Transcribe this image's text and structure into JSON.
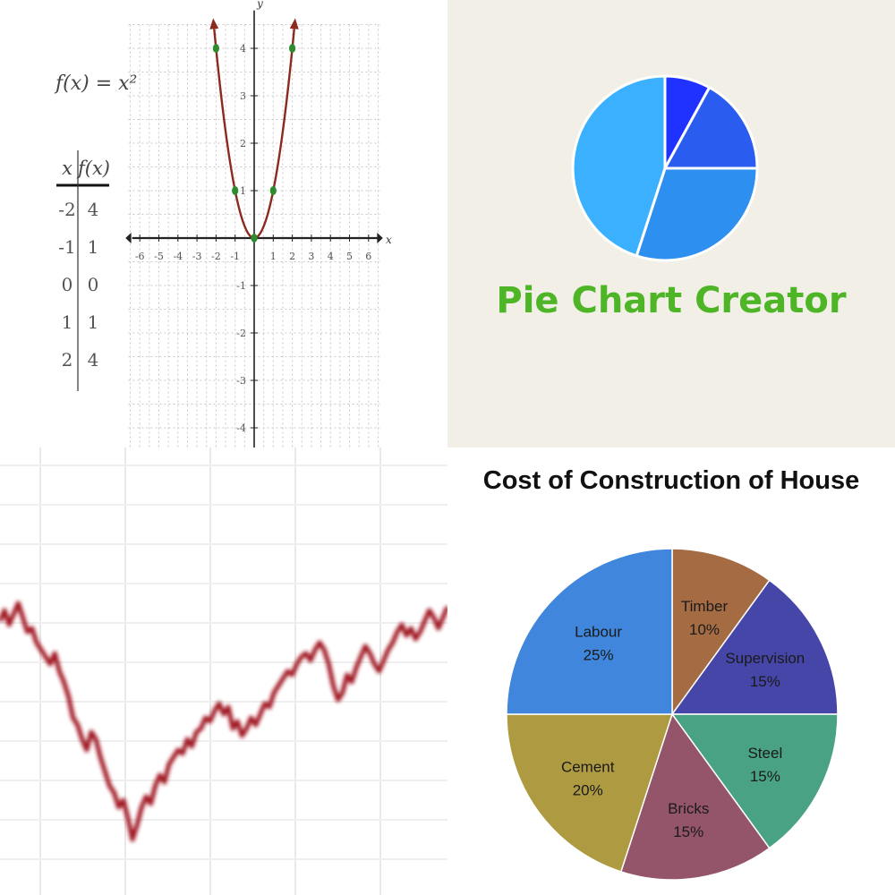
{
  "chart_data": [
    {
      "type": "line",
      "title": "",
      "function_label": "f(x) = x²",
      "table": {
        "headers": [
          "x",
          "f(x)"
        ],
        "rows": [
          [
            "-2",
            "4"
          ],
          [
            "-1",
            "1"
          ],
          [
            "0",
            "0"
          ],
          [
            "1",
            "1"
          ],
          [
            "2",
            "4"
          ]
        ]
      },
      "x_ticks": [
        -6,
        -5,
        -4,
        -3,
        -2,
        -1,
        1,
        2,
        3,
        4,
        5,
        6
      ],
      "y_ticks": [
        -4,
        -3,
        -2,
        -1,
        1,
        2,
        3,
        4
      ],
      "x_axis_label": "x",
      "y_axis_label": "y",
      "xlim": [
        -6.5,
        6.5
      ],
      "ylim": [
        -4.5,
        4.5
      ],
      "grid": true,
      "curve_x_range": [
        -2.1,
        2.1
      ],
      "highlighted_points": [
        [
          -2,
          4
        ],
        [
          -1,
          1
        ],
        [
          0,
          0
        ],
        [
          1,
          1
        ],
        [
          2,
          4
        ]
      ],
      "colors": {
        "curve": "#8b2a1e",
        "point": "#2e8b2e",
        "axis": "#222222"
      }
    },
    {
      "type": "pie",
      "logo_text": "Pie Chart Creator",
      "values": [
        8,
        17,
        30,
        45
      ],
      "colors": [
        "#1f32ff",
        "#2a5cf0",
        "#2d8ff0",
        "#3ab0ff"
      ],
      "text_color": "#4db526",
      "background": "#f1efe6"
    },
    {
      "type": "line",
      "title": "",
      "grid": true,
      "ylim": [
        0,
        100
      ],
      "series": [
        {
          "values": [
            69,
            72,
            68,
            71,
            74,
            70,
            66,
            67,
            63,
            61,
            59,
            57,
            60,
            55,
            52,
            48,
            42,
            40,
            36,
            33,
            38,
            36,
            31,
            27,
            23,
            21,
            17,
            19,
            14,
            8,
            12,
            17,
            20,
            18,
            23,
            26,
            24,
            29,
            31,
            33,
            32,
            36,
            34,
            38,
            39,
            42,
            41,
            44,
            46,
            43,
            45,
            39,
            41,
            37,
            39,
            42,
            40,
            43,
            46,
            45,
            49,
            51,
            53,
            55,
            54,
            57,
            59,
            60,
            58,
            61,
            63,
            61,
            57,
            51,
            47,
            49,
            54,
            52,
            56,
            59,
            62,
            60,
            57,
            55,
            58,
            61,
            63,
            66,
            68,
            65,
            67,
            64,
            66,
            69,
            72,
            70,
            67,
            70,
            73
          ]
        }
      ],
      "colors": {
        "line": "#a01822"
      }
    },
    {
      "type": "pie",
      "title": "Cost of Construction of House",
      "categories": [
        "Timber",
        "Supervision",
        "Steel",
        "Bricks",
        "Cement",
        "Labour"
      ],
      "values": [
        10,
        15,
        15,
        15,
        20,
        25
      ],
      "labels_pct": [
        "10%",
        "15%",
        "15%",
        "15%",
        "20%",
        "25%"
      ],
      "colors": [
        "#a56c44",
        "#4646a8",
        "#4aa284",
        "#94556a",
        "#ad9a41",
        "#3f86dc"
      ]
    }
  ]
}
